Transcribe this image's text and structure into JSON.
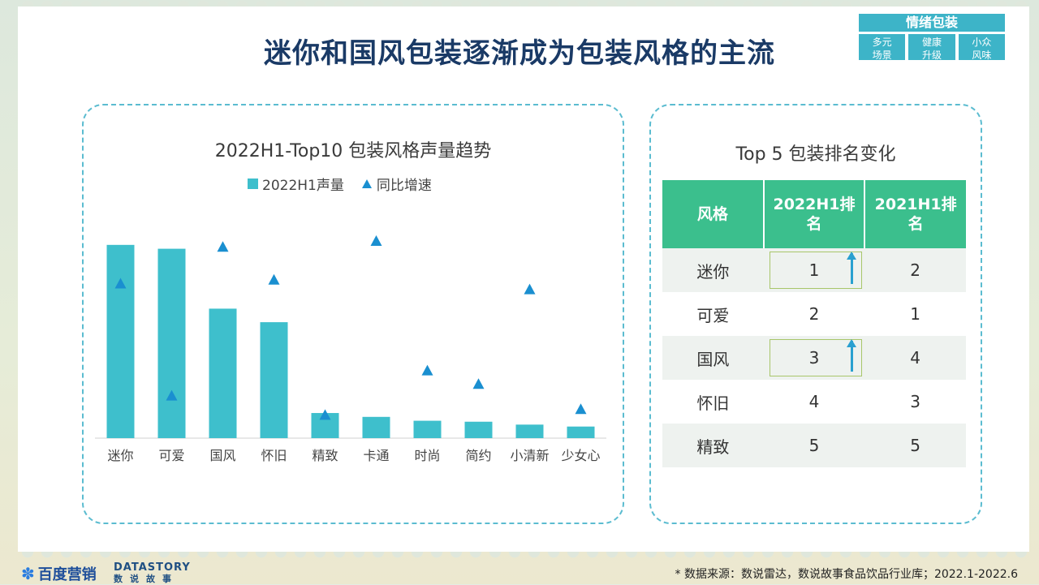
{
  "title": "迷你和国风包装逐渐成为包装风格的主流",
  "tag": {
    "head": "情绪包装",
    "cells": [
      [
        "多元",
        "场景"
      ],
      [
        "健康",
        "升级"
      ],
      [
        "小众",
        "风味"
      ]
    ]
  },
  "colors": {
    "bar": "#3ebfcc",
    "growth": "#1a8fd0",
    "table_header": "#3bbf8d",
    "panel_border": "#5bbcd0",
    "title": "#1a3a66"
  },
  "chart_data": {
    "type": "bar",
    "title": "2022H1-Top10 包装风格声量趋势",
    "categories": [
      "迷你",
      "可爱",
      "国风",
      "怀旧",
      "精致",
      "卡通",
      "时尚",
      "简约",
      "小清新",
      "少女心"
    ],
    "series": [
      {
        "name": "2022H1声量",
        "type": "bar",
        "values": [
          100,
          98,
          67,
          60,
          13,
          11,
          9,
          8.5,
          7,
          6
        ]
      },
      {
        "name": "同比增速",
        "type": "marker",
        "values": [
          80,
          22,
          99,
          82,
          12,
          102,
          35,
          28,
          77,
          15
        ]
      }
    ],
    "ylim": [
      0,
      110
    ],
    "grid": false,
    "legend": "top"
  },
  "ranking": {
    "title": "Top 5 包装排名变化",
    "headers": [
      "风格",
      "2022H1排名",
      "2021H1排名"
    ],
    "rows": [
      {
        "style": "迷你",
        "r2022": "1",
        "r2021": "2",
        "up": true
      },
      {
        "style": "可爱",
        "r2022": "2",
        "r2021": "1",
        "up": false
      },
      {
        "style": "国风",
        "r2022": "3",
        "r2021": "4",
        "up": true
      },
      {
        "style": "怀旧",
        "r2022": "4",
        "r2021": "3",
        "up": false
      },
      {
        "style": "精致",
        "r2022": "5",
        "r2021": "5",
        "up": false
      }
    ]
  },
  "footer": {
    "logo1": "百度营销",
    "logo2_top": "DATASTORY",
    "logo2_bottom": "数说故事",
    "source": "* 数据来源：数说雷达，数说故事食品饮品行业库；2022.1-2022.6"
  }
}
